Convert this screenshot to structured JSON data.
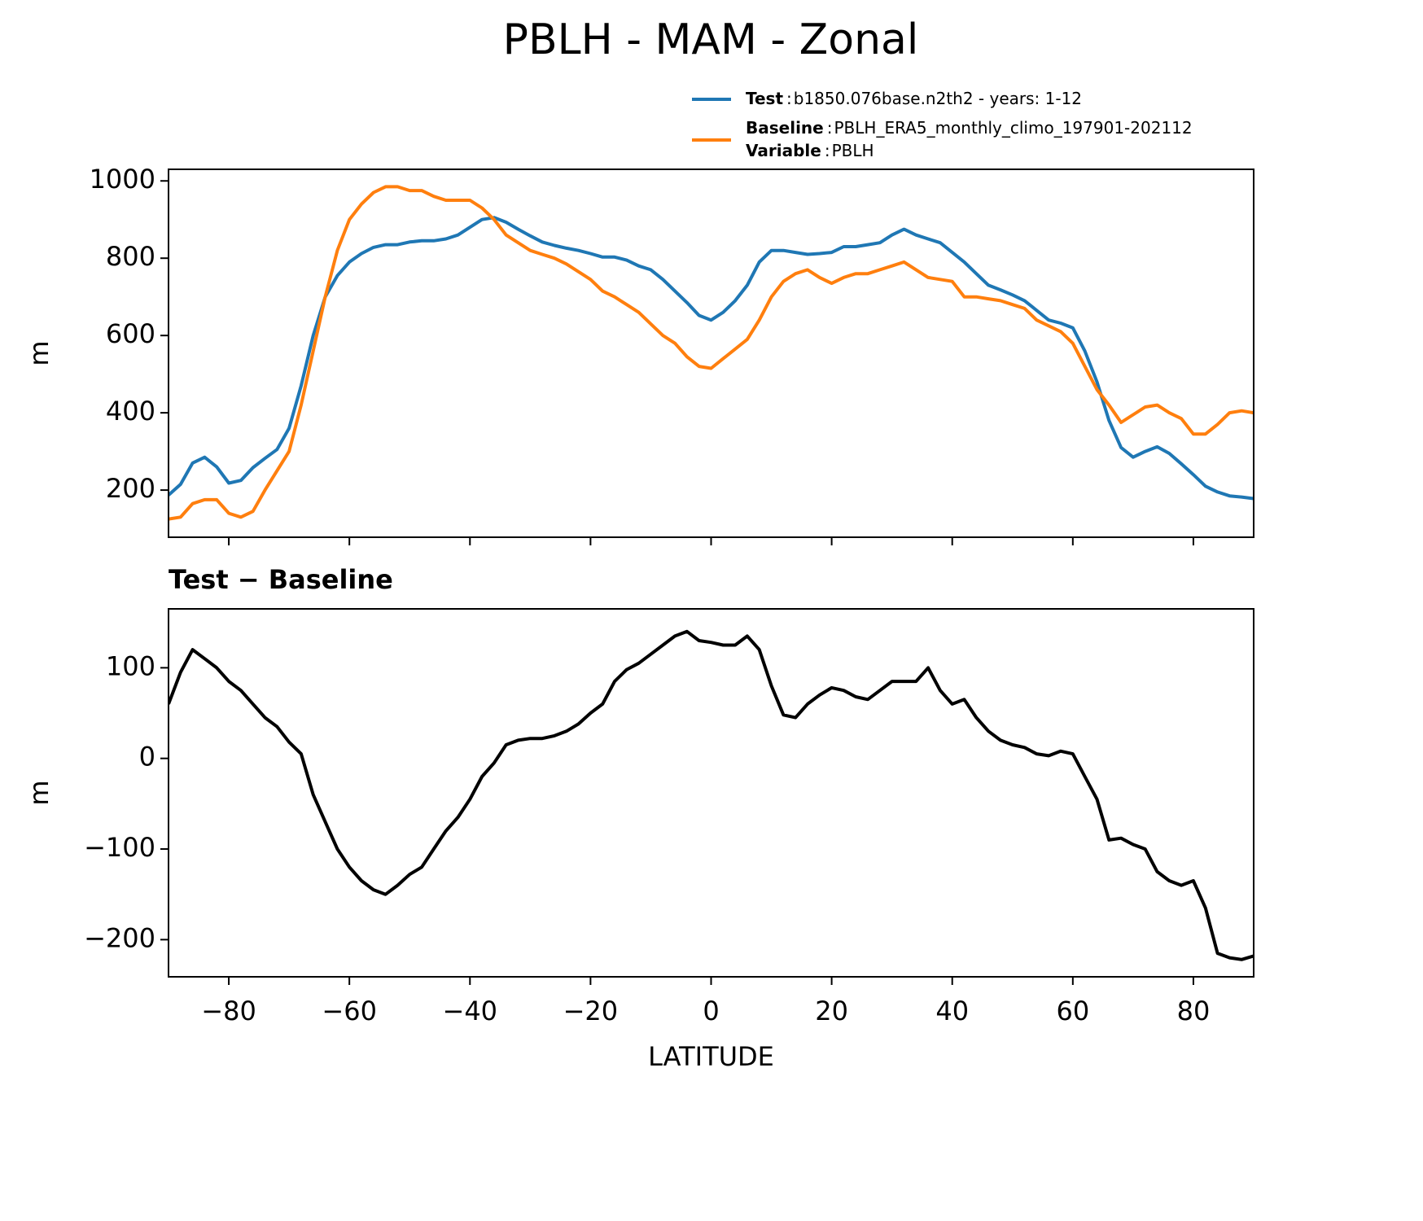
{
  "title": "PBLH - MAM - Zonal",
  "chart_data": [
    {
      "type": "line",
      "ylabel": "m",
      "x": [
        -90,
        -88,
        -86,
        -84,
        -82,
        -80,
        -78,
        -76,
        -74,
        -72,
        -70,
        -68,
        -66,
        -64,
        -62,
        -60,
        -58,
        -56,
        -54,
        -52,
        -50,
        -48,
        -46,
        -44,
        -42,
        -40,
        -38,
        -36,
        -34,
        -32,
        -30,
        -28,
        -26,
        -24,
        -22,
        -20,
        -18,
        -16,
        -14,
        -12,
        -10,
        -8,
        -6,
        -4,
        -2,
        0,
        2,
        4,
        6,
        8,
        10,
        12,
        14,
        16,
        18,
        20,
        22,
        24,
        26,
        28,
        30,
        32,
        34,
        36,
        38,
        40,
        42,
        44,
        46,
        48,
        50,
        52,
        54,
        56,
        58,
        60,
        62,
        64,
        66,
        68,
        70,
        72,
        74,
        76,
        78,
        80,
        82,
        84,
        86,
        88,
        90
      ],
      "series": [
        {
          "name": "Test",
          "description": "b1850.076base.n2th2 - years: 1-12",
          "color": "#1f77b4",
          "values": [
            187,
            215,
            270,
            285,
            260,
            218,
            225,
            258,
            282,
            305,
            360,
            470,
            600,
            700,
            755,
            790,
            812,
            828,
            835,
            835,
            842,
            845,
            845,
            850,
            860,
            880,
            900,
            905,
            893,
            875,
            858,
            842,
            833,
            826,
            820,
            812,
            803,
            803,
            795,
            780,
            770,
            745,
            715,
            685,
            652,
            640,
            660,
            690,
            730,
            790,
            820,
            820,
            815,
            810,
            812,
            815,
            830,
            830,
            835,
            840,
            860,
            875,
            860,
            850,
            840,
            815,
            790,
            760,
            730,
            718,
            705,
            690,
            665,
            640,
            632,
            620,
            560,
            480,
            380,
            310,
            285,
            300,
            312,
            295,
            268,
            240,
            210,
            195,
            185,
            182,
            178
          ]
        },
        {
          "name": "Baseline",
          "description": "PBLH_ERA5_monthly_climo_197901-202112",
          "color": "#ff7f0e",
          "values": [
            125,
            130,
            165,
            175,
            175,
            140,
            130,
            145,
            200,
            250,
            300,
            420,
            560,
            700,
            820,
            900,
            940,
            970,
            985,
            985,
            975,
            975,
            960,
            950,
            950,
            950,
            930,
            900,
            860,
            840,
            820,
            810,
            800,
            785,
            765,
            745,
            715,
            700,
            680,
            660,
            630,
            600,
            580,
            545,
            520,
            515,
            540,
            565,
            590,
            640,
            700,
            740,
            760,
            770,
            750,
            735,
            750,
            760,
            760,
            770,
            780,
            790,
            770,
            750,
            745,
            740,
            700,
            700,
            695,
            690,
            680,
            670,
            640,
            625,
            610,
            580,
            520,
            460,
            420,
            375,
            395,
            415,
            420,
            400,
            385,
            345,
            345,
            370,
            400,
            405,
            400
          ]
        }
      ],
      "legend_extra": {
        "name": "Variable",
        "description": "PBLH"
      },
      "legend_separator": ":",
      "xlim": [
        -90,
        90
      ],
      "xticks": [
        {
          "value": -80,
          "label": "−80"
        },
        {
          "value": -60,
          "label": "−60"
        },
        {
          "value": -40,
          "label": "−40"
        },
        {
          "value": -20,
          "label": "−20"
        },
        0,
        20,
        40,
        60,
        80
      ],
      "show_xtick_labels": false,
      "ylim": [
        78,
        1030
      ],
      "yticks": [
        200,
        400,
        600,
        800,
        1000
      ]
    },
    {
      "type": "line",
      "title": "Test − Baseline",
      "ylabel": "m",
      "xlabel": "LATITUDE",
      "x": [
        -90,
        -88,
        -86,
        -84,
        -82,
        -80,
        -78,
        -76,
        -74,
        -72,
        -70,
        -68,
        -66,
        -64,
        -62,
        -60,
        -58,
        -56,
        -54,
        -52,
        -50,
        -48,
        -46,
        -44,
        -42,
        -40,
        -38,
        -36,
        -34,
        -32,
        -30,
        -28,
        -26,
        -24,
        -22,
        -20,
        -18,
        -16,
        -14,
        -12,
        -10,
        -8,
        -6,
        -4,
        -2,
        0,
        2,
        4,
        6,
        8,
        10,
        12,
        14,
        16,
        18,
        20,
        22,
        24,
        26,
        28,
        30,
        32,
        34,
        36,
        38,
        40,
        42,
        44,
        46,
        48,
        50,
        52,
        54,
        56,
        58,
        60,
        62,
        64,
        66,
        68,
        70,
        72,
        74,
        76,
        78,
        80,
        82,
        84,
        86,
        88,
        90
      ],
      "series": [
        {
          "color": "#000000",
          "values": [
            60,
            95,
            120,
            110,
            100,
            85,
            75,
            60,
            45,
            35,
            18,
            5,
            -40,
            -70,
            -100,
            -120,
            -135,
            -145,
            -150,
            -140,
            -128,
            -120,
            -100,
            -80,
            -65,
            -45,
            -20,
            -5,
            15,
            20,
            22,
            22,
            25,
            30,
            38,
            50,
            60,
            85,
            98,
            105,
            115,
            125,
            135,
            140,
            130,
            128,
            125,
            125,
            135,
            120,
            80,
            48,
            45,
            60,
            70,
            78,
            75,
            68,
            65,
            75,
            85,
            85,
            85,
            100,
            75,
            60,
            65,
            45,
            30,
            20,
            15,
            12,
            5,
            3,
            8,
            5,
            -20,
            -45,
            -90,
            -88,
            -95,
            -100,
            -125,
            -135,
            -140,
            -135,
            -165,
            -215,
            -220,
            -222,
            -218
          ]
        }
      ],
      "xlim": [
        -90,
        90
      ],
      "xticks": [
        {
          "value": -80,
          "label": "−80"
        },
        {
          "value": -60,
          "label": "−60"
        },
        {
          "value": -40,
          "label": "−40"
        },
        {
          "value": -20,
          "label": "−20"
        },
        0,
        20,
        40,
        60,
        80
      ],
      "show_xtick_labels": true,
      "ylim": [
        -241,
        165
      ],
      "yticks": [
        {
          "value": -200,
          "label": "−200"
        },
        {
          "value": -100,
          "label": "−100"
        },
        0,
        100
      ]
    }
  ]
}
